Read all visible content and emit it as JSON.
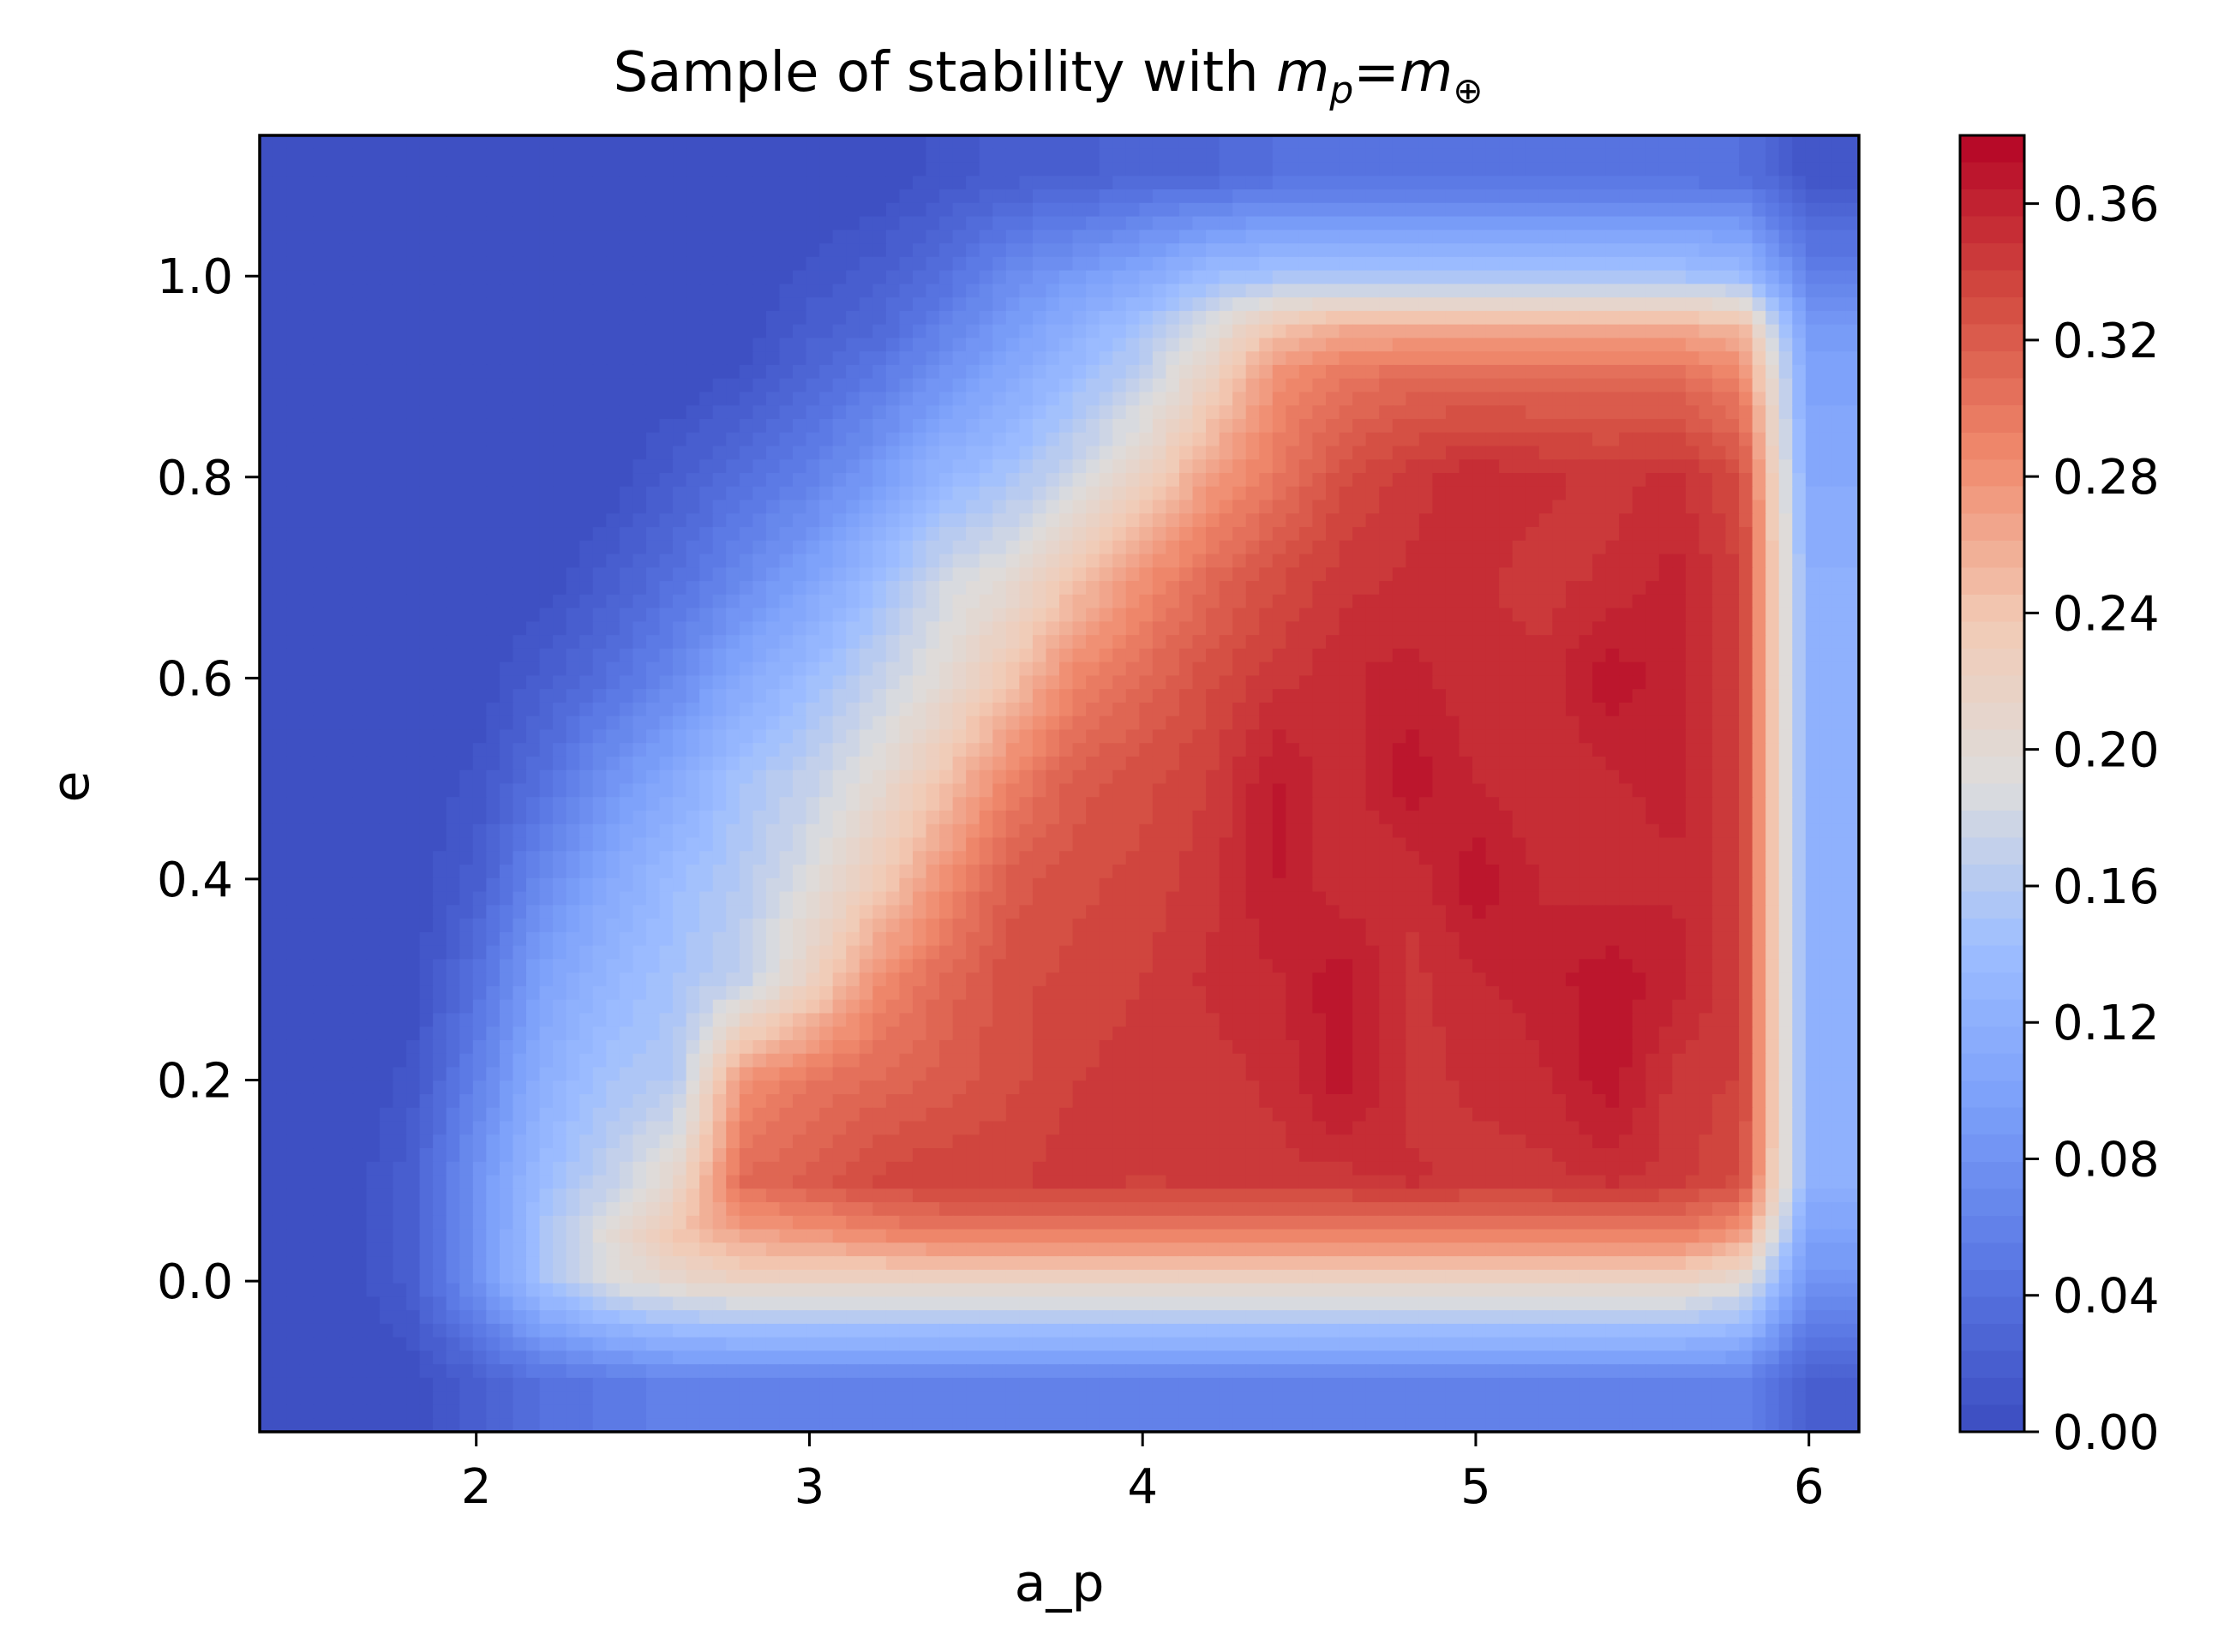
{
  "chart_data": {
    "type": "heatmap",
    "style": "filled-contour",
    "colormap": "coolwarm",
    "title": {
      "prefix": "Sample of stability with ",
      "lhs": "m",
      "lhs_sub": "p",
      "eq": "=",
      "rhs": "m",
      "rhs_sub": "⊕"
    },
    "xlabel": "a_p",
    "ylabel": "e",
    "xlim": [
      1.35,
      6.15
    ],
    "ylim": [
      -0.15,
      1.14
    ],
    "xticks": [
      2,
      3,
      4,
      5,
      6
    ],
    "xtick_labels": [
      "2",
      "3",
      "4",
      "5",
      "6"
    ],
    "yticks": [
      0.0,
      0.2,
      0.4,
      0.6,
      0.8,
      1.0
    ],
    "ytick_labels": [
      "0.0",
      "0.2",
      "0.4",
      "0.6",
      "0.8",
      "1.0"
    ],
    "colorbar": {
      "range": [
        0.0,
        0.38
      ],
      "ticks": [
        0.0,
        0.04,
        0.08,
        0.12,
        0.16,
        0.2,
        0.24,
        0.28,
        0.32,
        0.36
      ],
      "tick_labels": [
        "0.00",
        "0.04",
        "0.08",
        "0.12",
        "0.16",
        "0.20",
        "0.24",
        "0.28",
        "0.32",
        "0.36"
      ],
      "stops": [
        {
          "v": 0.0,
          "color": "#3b4cc0"
        },
        {
          "v": 0.0475,
          "color": "#5977e3"
        },
        {
          "v": 0.095,
          "color": "#7b9ff9"
        },
        {
          "v": 0.1425,
          "color": "#9ebeff"
        },
        {
          "v": 0.19,
          "color": "#dddcdc"
        },
        {
          "v": 0.2375,
          "color": "#f2cab5"
        },
        {
          "v": 0.285,
          "color": "#f08b6e"
        },
        {
          "v": 0.3325,
          "color": "#d24b40"
        },
        {
          "v": 0.38,
          "color": "#b40426"
        }
      ]
    },
    "grid": false,
    "x": [
      1.6,
      1.8,
      2.0,
      2.2,
      2.4,
      2.6,
      2.8,
      3.0,
      3.2,
      3.4,
      3.6,
      3.8,
      4.0,
      4.2,
      4.4,
      4.6,
      4.8,
      5.0,
      5.2,
      5.4,
      5.6,
      5.8,
      6.0
    ],
    "y": [
      -0.1,
      0.0,
      0.05,
      0.1,
      0.2,
      0.3,
      0.4,
      0.5,
      0.6,
      0.7,
      0.8,
      0.9,
      0.95,
      1.0,
      1.1
    ],
    "z": [
      [
        0.0,
        0.0,
        0.02,
        0.04,
        0.05,
        0.06,
        0.06,
        0.06,
        0.06,
        0.06,
        0.06,
        0.06,
        0.06,
        0.06,
        0.06,
        0.06,
        0.06,
        0.06,
        0.06,
        0.06,
        0.06,
        0.06,
        0.02
      ],
      [
        0.0,
        0.02,
        0.08,
        0.15,
        0.19,
        0.21,
        0.22,
        0.22,
        0.22,
        0.22,
        0.22,
        0.22,
        0.22,
        0.22,
        0.22,
        0.22,
        0.22,
        0.22,
        0.22,
        0.22,
        0.22,
        0.2,
        0.08
      ],
      [
        0.0,
        0.02,
        0.08,
        0.15,
        0.2,
        0.24,
        0.27,
        0.28,
        0.29,
        0.3,
        0.3,
        0.3,
        0.3,
        0.3,
        0.3,
        0.3,
        0.3,
        0.3,
        0.3,
        0.3,
        0.3,
        0.28,
        0.1
      ],
      [
        0.0,
        0.02,
        0.08,
        0.14,
        0.17,
        0.21,
        0.31,
        0.32,
        0.335,
        0.34,
        0.34,
        0.345,
        0.34,
        0.345,
        0.345,
        0.345,
        0.35,
        0.345,
        0.345,
        0.35,
        0.345,
        0.33,
        0.12
      ],
      [
        0.0,
        0.01,
        0.06,
        0.12,
        0.15,
        0.16,
        0.28,
        0.3,
        0.31,
        0.32,
        0.33,
        0.34,
        0.345,
        0.345,
        0.35,
        0.37,
        0.345,
        0.35,
        0.355,
        0.37,
        0.345,
        0.34,
        0.12
      ],
      [
        0.0,
        0.0,
        0.04,
        0.1,
        0.13,
        0.15,
        0.17,
        0.22,
        0.28,
        0.31,
        0.33,
        0.335,
        0.34,
        0.35,
        0.355,
        0.37,
        0.345,
        0.355,
        0.36,
        0.37,
        0.36,
        0.34,
        0.12
      ],
      [
        0.0,
        0.0,
        0.02,
        0.07,
        0.11,
        0.14,
        0.16,
        0.19,
        0.23,
        0.28,
        0.32,
        0.33,
        0.335,
        0.345,
        0.365,
        0.35,
        0.35,
        0.37,
        0.355,
        0.35,
        0.355,
        0.34,
        0.12
      ],
      [
        0.0,
        0.0,
        0.01,
        0.04,
        0.08,
        0.11,
        0.15,
        0.17,
        0.2,
        0.24,
        0.29,
        0.32,
        0.33,
        0.34,
        0.365,
        0.35,
        0.37,
        0.355,
        0.35,
        0.355,
        0.36,
        0.34,
        0.12
      ],
      [
        0.0,
        0.0,
        0.0,
        0.02,
        0.04,
        0.07,
        0.11,
        0.14,
        0.17,
        0.2,
        0.24,
        0.29,
        0.31,
        0.33,
        0.345,
        0.355,
        0.36,
        0.35,
        0.35,
        0.37,
        0.36,
        0.34,
        0.12
      ],
      [
        0.0,
        0.0,
        0.0,
        0.0,
        0.02,
        0.04,
        0.07,
        0.1,
        0.14,
        0.18,
        0.2,
        0.24,
        0.28,
        0.31,
        0.33,
        0.345,
        0.35,
        0.35,
        0.345,
        0.35,
        0.36,
        0.34,
        0.12
      ],
      [
        0.0,
        0.0,
        0.0,
        0.0,
        0.0,
        0.02,
        0.04,
        0.06,
        0.09,
        0.13,
        0.15,
        0.18,
        0.22,
        0.27,
        0.3,
        0.33,
        0.345,
        0.355,
        0.35,
        0.345,
        0.35,
        0.33,
        0.11
      ],
      [
        0.0,
        0.0,
        0.0,
        0.0,
        0.0,
        0.0,
        0.01,
        0.03,
        0.05,
        0.08,
        0.11,
        0.14,
        0.17,
        0.22,
        0.28,
        0.3,
        0.31,
        0.31,
        0.31,
        0.31,
        0.31,
        0.29,
        0.1
      ],
      [
        0.0,
        0.0,
        0.0,
        0.0,
        0.0,
        0.0,
        0.0,
        0.02,
        0.03,
        0.06,
        0.09,
        0.12,
        0.15,
        0.19,
        0.24,
        0.26,
        0.26,
        0.26,
        0.26,
        0.26,
        0.26,
        0.25,
        0.09
      ],
      [
        0.0,
        0.0,
        0.0,
        0.0,
        0.0,
        0.0,
        0.0,
        0.01,
        0.02,
        0.04,
        0.07,
        0.09,
        0.11,
        0.14,
        0.15,
        0.15,
        0.15,
        0.15,
        0.15,
        0.15,
        0.15,
        0.14,
        0.06
      ],
      [
        0.0,
        0.0,
        0.0,
        0.0,
        0.0,
        0.0,
        0.0,
        0.0,
        0.0,
        0.01,
        0.02,
        0.02,
        0.03,
        0.03,
        0.04,
        0.04,
        0.04,
        0.04,
        0.04,
        0.04,
        0.04,
        0.04,
        0.01
      ]
    ]
  }
}
